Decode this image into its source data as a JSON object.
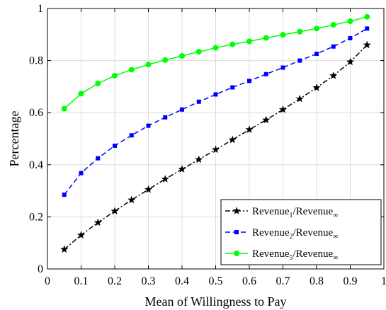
{
  "chart_data": {
    "type": "line",
    "xlabel": "Mean of Willingness to Pay",
    "ylabel": "Percentage",
    "xlim": [
      0,
      1
    ],
    "ylim": [
      0,
      1
    ],
    "grid": true,
    "legend_position": "bottom-right",
    "x_ticks": [
      "0",
      "0.1",
      "0.2",
      "0.3",
      "0.4",
      "0.5",
      "0.6",
      "0.7",
      "0.8",
      "0.9",
      "1"
    ],
    "y_ticks": [
      "0",
      "0.2",
      "0.4",
      "0.6",
      "0.8",
      "1"
    ],
    "x": [
      0.05,
      0.1,
      0.15,
      0.2,
      0.25,
      0.3,
      0.35,
      0.4,
      0.45,
      0.5,
      0.55,
      0.6,
      0.65,
      0.7,
      0.75,
      0.8,
      0.85,
      0.9,
      0.95
    ],
    "series": [
      {
        "name": "Revenue1/Revenue∞",
        "base": "Revenue",
        "sub": "1",
        "over": "/Revenue",
        "over_sub": "∞",
        "color": "#000000",
        "marker": "star",
        "dash": "dashdot",
        "values": [
          0.075,
          0.13,
          0.178,
          0.222,
          0.265,
          0.305,
          0.345,
          0.383,
          0.42,
          0.458,
          0.496,
          0.535,
          0.572,
          0.612,
          0.653,
          0.696,
          0.742,
          0.795,
          0.86
        ]
      },
      {
        "name": "Revenue2/Revenue∞",
        "base": "Revenue",
        "sub": "2",
        "over": "/Revenue",
        "over_sub": "∞",
        "color": "#0000ff",
        "marker": "square",
        "dash": "dashed",
        "values": [
          0.285,
          0.368,
          0.425,
          0.473,
          0.513,
          0.55,
          0.582,
          0.612,
          0.642,
          0.67,
          0.697,
          0.722,
          0.748,
          0.773,
          0.8,
          0.826,
          0.854,
          0.886,
          0.923
        ]
      },
      {
        "name": "Revenue5/Revenue∞",
        "base": "Revenue",
        "sub": "5",
        "over": "/Revenue",
        "over_sub": "∞",
        "color": "#00ff00",
        "marker": "circle",
        "dash": "solid",
        "values": [
          0.615,
          0.673,
          0.712,
          0.742,
          0.765,
          0.785,
          0.802,
          0.818,
          0.834,
          0.849,
          0.862,
          0.874,
          0.887,
          0.899,
          0.911,
          0.923,
          0.937,
          0.951,
          0.968
        ]
      }
    ]
  }
}
